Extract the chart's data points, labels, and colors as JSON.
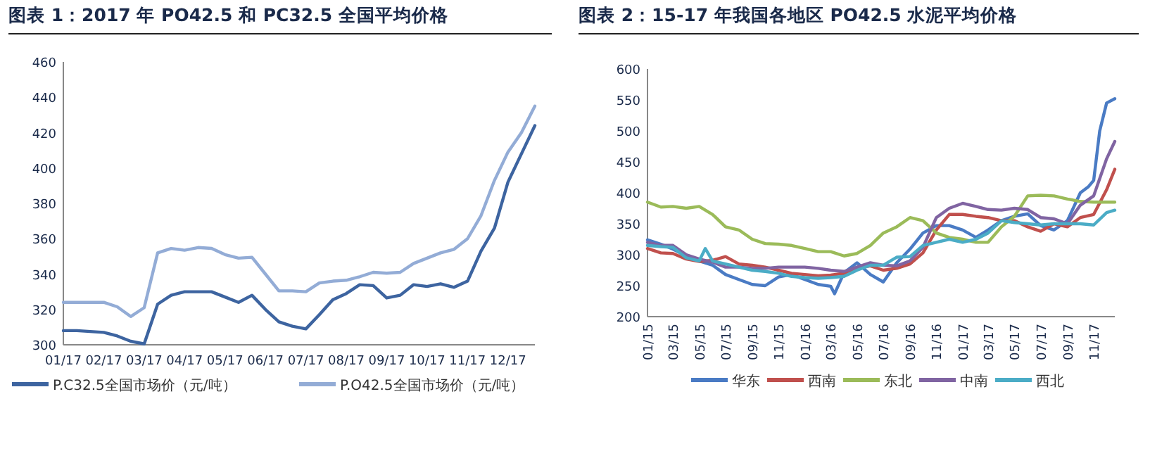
{
  "chart_data": [
    {
      "type": "line",
      "title": "图表 1：2017 年 PO42.5 和 PC32.5 全国平均价格",
      "legend": "bottom",
      "categories": [
        "01/17",
        null,
        null,
        "02/17",
        null,
        null,
        "03/17",
        null,
        null,
        "04/17",
        null,
        null,
        "05/17",
        null,
        null,
        "06/17",
        null,
        null,
        "07/17",
        null,
        null,
        "08/17",
        null,
        null,
        "09/17",
        null,
        null,
        "10/17",
        null,
        null,
        "11/17",
        null,
        null,
        "12/17",
        null,
        null
      ],
      "ylim": [
        300,
        460
      ],
      "yticks": [
        300,
        320,
        340,
        360,
        380,
        400,
        420,
        440,
        460
      ],
      "series": [
        {
          "name": "P.C32.5全国市场价（元/吨）",
          "color": "#3d64a0",
          "values": [
            308,
            308,
            307.5,
            307,
            305,
            302,
            300.5,
            323,
            328,
            330,
            330,
            330,
            327,
            324,
            328,
            320,
            313,
            310.5,
            309,
            317,
            325.5,
            329,
            334,
            333.5,
            326.5,
            328,
            334,
            333,
            334.5,
            332.5,
            336,
            353,
            366,
            392,
            408,
            424
          ]
        },
        {
          "name": "P.O42.5全国市场价（元/吨）",
          "color": "#93acd6",
          "values": [
            324,
            324,
            324,
            324,
            321.5,
            316,
            321,
            352,
            354.5,
            353.5,
            355,
            354.5,
            351,
            349,
            349.5,
            340,
            330.5,
            330.5,
            330,
            335,
            336,
            336.5,
            338.5,
            341,
            340.5,
            341,
            346,
            349,
            352,
            354,
            360,
            373,
            393,
            409,
            420,
            435
          ]
        }
      ]
    },
    {
      "type": "line",
      "title": "图表 2：15-17 年我国各地区 PO42.5 水泥平均价格",
      "legend": "bottom",
      "xlim": [
        "2015-01-01",
        "2017-12-20"
      ],
      "xticks": [
        {
          "value": "2015-01-01",
          "label": "01/15"
        },
        {
          "value": "2015-03-01",
          "label": "03/15"
        },
        {
          "value": "2015-05-01",
          "label": "05/15"
        },
        {
          "value": "2015-07-01",
          "label": "07/15"
        },
        {
          "value": "2015-09-01",
          "label": "09/15"
        },
        {
          "value": "2015-11-01",
          "label": "11/15"
        },
        {
          "value": "2016-01-01",
          "label": "01/16"
        },
        {
          "value": "2016-03-01",
          "label": "03/16"
        },
        {
          "value": "2016-05-01",
          "label": "05/16"
        },
        {
          "value": "2016-07-01",
          "label": "07/16"
        },
        {
          "value": "2016-09-01",
          "label": "09/16"
        },
        {
          "value": "2016-11-01",
          "label": "11/16"
        },
        {
          "value": "2017-01-01",
          "label": "01/17"
        },
        {
          "value": "2017-03-01",
          "label": "03/17"
        },
        {
          "value": "2017-05-01",
          "label": "05/17"
        },
        {
          "value": "2017-07-01",
          "label": "07/17"
        },
        {
          "value": "2017-09-01",
          "label": "09/17"
        },
        {
          "value": "2017-11-01",
          "label": "11/17"
        }
      ],
      "ylim": [
        200,
        600
      ],
      "yticks": [
        200,
        250,
        300,
        350,
        400,
        450,
        500,
        550,
        600
      ],
      "series": [
        {
          "name": "华东",
          "color": "#4a7bc4",
          "x": [
            "2015-01-01",
            "2015-02-01",
            "2015-03-01",
            "2015-04-01",
            "2015-05-01",
            "2015-06-01",
            "2015-07-01",
            "2015-08-01",
            "2015-09-01",
            "2015-10-01",
            "2015-11-01",
            "2015-12-01",
            "2016-01-01",
            "2016-02-01",
            "2016-03-01",
            "2016-03-10",
            "2016-04-01",
            "2016-05-01",
            "2016-06-01",
            "2016-07-01",
            "2016-08-01",
            "2016-09-01",
            "2016-10-01",
            "2016-11-01",
            "2016-12-01",
            "2017-01-01",
            "2017-02-01",
            "2017-03-01",
            "2017-04-01",
            "2017-05-01",
            "2017-06-01",
            "2017-07-01",
            "2017-08-01",
            "2017-09-01",
            "2017-10-01",
            "2017-10-20",
            "2017-11-01",
            "2017-11-15",
            "2017-12-01",
            "2017-12-20"
          ],
          "values": [
            324,
            317,
            309,
            298,
            290,
            283,
            268,
            260,
            252,
            250,
            264,
            268,
            260,
            252,
            249,
            237,
            271,
            287,
            268,
            256,
            287,
            309,
            335,
            347,
            347,
            340,
            328,
            340,
            355,
            362,
            366,
            347,
            340,
            355,
            400,
            410,
            420,
            500,
            545,
            552
          ]
        },
        {
          "name": "西南",
          "color": "#c0504d",
          "x": [
            "2015-01-01",
            "2015-02-01",
            "2015-03-01",
            "2015-04-01",
            "2015-05-01",
            "2015-06-01",
            "2015-07-01",
            "2015-08-01",
            "2015-09-01",
            "2015-10-01",
            "2015-11-01",
            "2015-12-01",
            "2016-01-01",
            "2016-02-01",
            "2016-03-01",
            "2016-04-01",
            "2016-05-01",
            "2016-06-01",
            "2016-07-01",
            "2016-08-01",
            "2016-09-01",
            "2016-10-01",
            "2016-11-01",
            "2016-12-01",
            "2017-01-01",
            "2017-02-01",
            "2017-03-01",
            "2017-04-01",
            "2017-05-01",
            "2017-06-01",
            "2017-07-01",
            "2017-08-01",
            "2017-09-01",
            "2017-10-01",
            "2017-11-01",
            "2017-12-01",
            "2017-12-20"
          ],
          "values": [
            310,
            303,
            302,
            293,
            289,
            291,
            297,
            285,
            283,
            280,
            275,
            270,
            268,
            266,
            267,
            270,
            278,
            282,
            275,
            278,
            285,
            303,
            340,
            365,
            365,
            362,
            360,
            355,
            355,
            345,
            338,
            350,
            345,
            360,
            365,
            405,
            438
          ]
        },
        {
          "name": "东北",
          "color": "#9bbb59",
          "x": [
            "2015-01-01",
            "2015-02-01",
            "2015-03-01",
            "2015-04-01",
            "2015-05-01",
            "2015-06-01",
            "2015-07-01",
            "2015-08-01",
            "2015-09-01",
            "2015-10-01",
            "2015-11-01",
            "2015-12-01",
            "2016-01-01",
            "2016-02-01",
            "2016-03-01",
            "2016-04-01",
            "2016-05-01",
            "2016-06-01",
            "2016-07-01",
            "2016-08-01",
            "2016-09-01",
            "2016-10-01",
            "2016-11-01",
            "2016-12-01",
            "2017-01-01",
            "2017-02-01",
            "2017-03-01",
            "2017-04-01",
            "2017-05-01",
            "2017-06-01",
            "2017-07-01",
            "2017-08-01",
            "2017-09-01",
            "2017-10-01",
            "2017-11-01",
            "2017-12-01",
            "2017-12-20"
          ],
          "values": [
            385,
            377,
            378,
            375,
            378,
            365,
            345,
            340,
            325,
            318,
            317,
            315,
            310,
            305,
            305,
            298,
            302,
            315,
            335,
            345,
            360,
            355,
            335,
            328,
            325,
            320,
            320,
            345,
            362,
            395,
            396,
            395,
            390,
            386,
            385,
            385,
            385
          ]
        },
        {
          "name": "中南",
          "color": "#8064a2",
          "x": [
            "2015-01-01",
            "2015-02-01",
            "2015-03-01",
            "2015-04-01",
            "2015-05-01",
            "2015-06-01",
            "2015-07-01",
            "2015-08-01",
            "2015-09-01",
            "2015-10-01",
            "2015-11-01",
            "2015-12-01",
            "2016-01-01",
            "2016-02-01",
            "2016-03-01",
            "2016-04-01",
            "2016-05-01",
            "2016-06-01",
            "2016-07-01",
            "2016-08-01",
            "2016-09-01",
            "2016-10-01",
            "2016-11-01",
            "2016-12-01",
            "2017-01-01",
            "2017-02-01",
            "2017-03-01",
            "2017-04-01",
            "2017-05-01",
            "2017-06-01",
            "2017-07-01",
            "2017-08-01",
            "2017-09-01",
            "2017-10-01",
            "2017-11-01",
            "2017-12-01",
            "2017-12-20"
          ],
          "values": [
            320,
            315,
            315,
            300,
            293,
            288,
            280,
            280,
            278,
            278,
            280,
            280,
            280,
            278,
            275,
            273,
            280,
            287,
            283,
            282,
            290,
            312,
            360,
            375,
            383,
            378,
            373,
            372,
            375,
            373,
            360,
            358,
            350,
            380,
            395,
            455,
            483
          ]
        },
        {
          "name": "西北",
          "color": "#4bacc6",
          "x": [
            "2015-01-01",
            "2015-02-01",
            "2015-03-01",
            "2015-04-01",
            "2015-05-01",
            "2015-05-15",
            "2015-06-01",
            "2015-07-01",
            "2015-08-01",
            "2015-09-01",
            "2015-10-01",
            "2015-11-01",
            "2015-12-01",
            "2016-01-01",
            "2016-02-01",
            "2016-03-01",
            "2016-04-01",
            "2016-05-01",
            "2016-06-01",
            "2016-07-01",
            "2016-08-01",
            "2016-09-01",
            "2016-10-01",
            "2016-11-01",
            "2016-12-01",
            "2017-01-01",
            "2017-02-01",
            "2017-03-01",
            "2017-04-01",
            "2017-05-01",
            "2017-06-01",
            "2017-07-01",
            "2017-08-01",
            "2017-09-01",
            "2017-10-01",
            "2017-11-01",
            "2017-12-01",
            "2017-12-20"
          ],
          "values": [
            315,
            313,
            312,
            295,
            290,
            310,
            290,
            285,
            280,
            275,
            273,
            270,
            265,
            263,
            262,
            263,
            265,
            275,
            283,
            283,
            296,
            297,
            315,
            320,
            325,
            320,
            325,
            335,
            355,
            352,
            350,
            348,
            350,
            350,
            350,
            348,
            368,
            372
          ]
        }
      ]
    }
  ]
}
